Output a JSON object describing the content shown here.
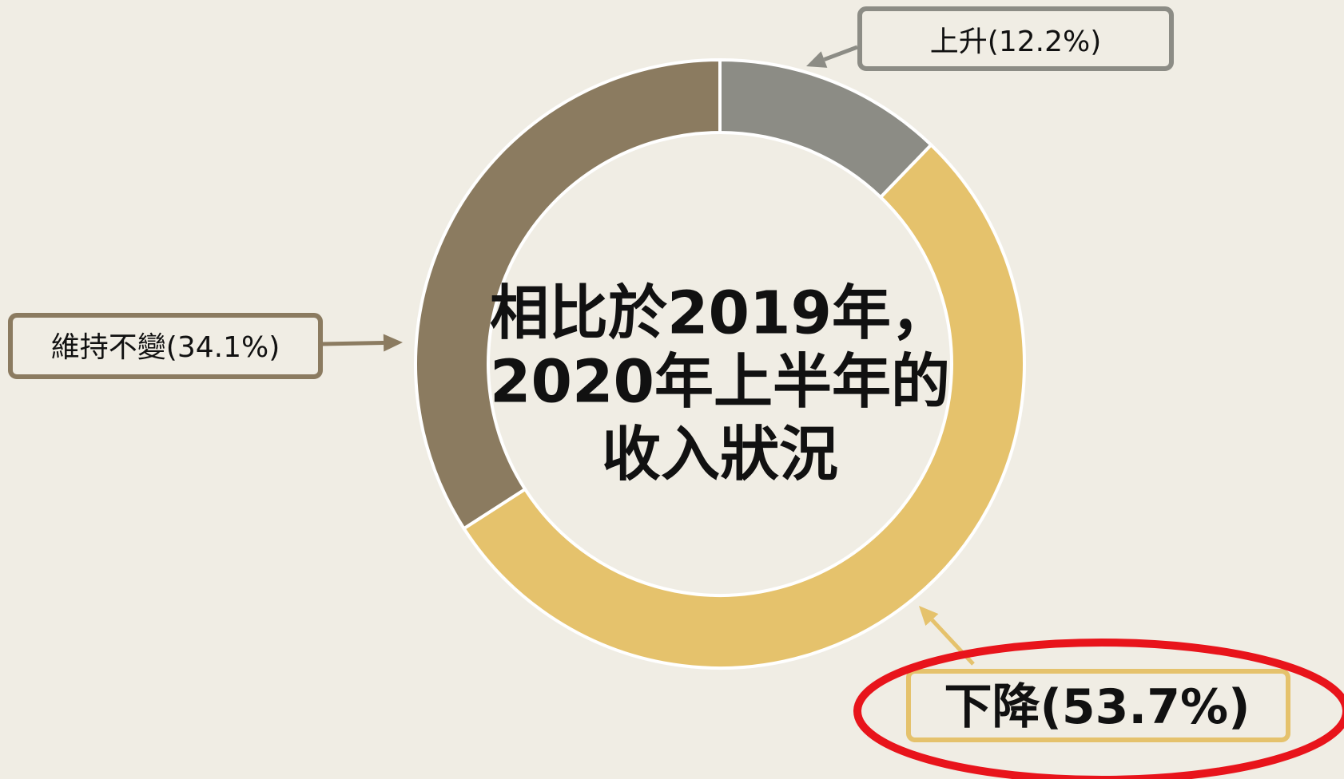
{
  "chart_data": {
    "type": "pie",
    "donut": true,
    "title": [
      "相比於2019年，",
      "2020年上半年的",
      "收入狀況"
    ],
    "categories": [
      "上升",
      "下降",
      "維持不變"
    ],
    "values": [
      12.2,
      53.7,
      34.1
    ],
    "value_labels": [
      "(12.2%)",
      "(53.7%)",
      "(34.1%)"
    ],
    "colors": [
      "#8c8c85",
      "#e5c26c",
      "#8b7b60"
    ]
  }
}
